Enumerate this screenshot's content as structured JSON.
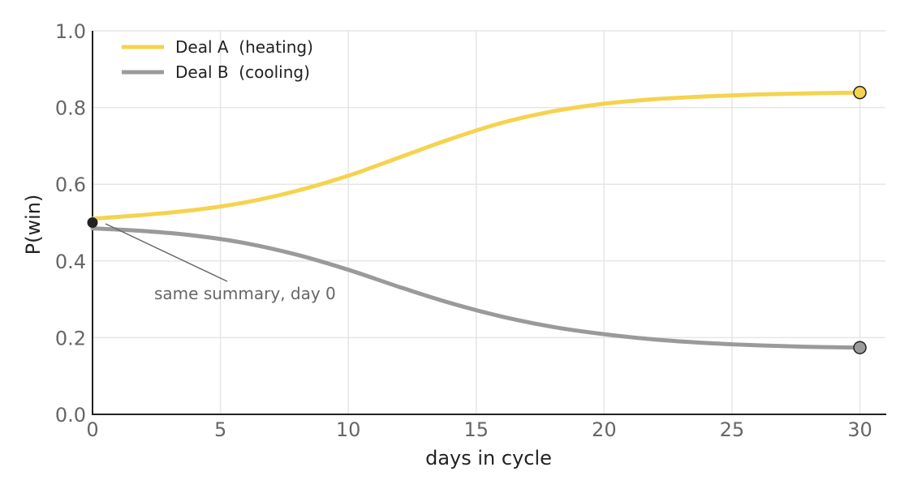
{
  "chart_data": {
    "type": "line",
    "title": "",
    "xlabel": "days in cycle",
    "ylabel": "P(win)",
    "xlim": [
      0,
      31
    ],
    "ylim": [
      0,
      1
    ],
    "xticks": [
      0,
      5,
      10,
      15,
      20,
      25,
      30
    ],
    "xtick_labels": [
      "0",
      "5",
      "10",
      "15",
      "20",
      "25",
      "30"
    ],
    "yticks": [
      0,
      0.2,
      0.4,
      0.6,
      0.8,
      1.0
    ],
    "ytick_labels": [
      "0.0",
      "0.2",
      "0.4",
      "0.6",
      "0.8",
      "1.0"
    ],
    "grid": true,
    "legend_position": "top-left",
    "series": [
      {
        "name": "Deal A  (heating)",
        "color": "#f5d34f",
        "x": [
          0,
          2,
          4,
          6,
          8,
          10,
          12,
          14,
          16,
          18,
          20,
          22,
          24,
          26,
          28,
          30
        ],
        "y": [
          0.51,
          0.52,
          0.533,
          0.553,
          0.583,
          0.622,
          0.67,
          0.718,
          0.76,
          0.79,
          0.81,
          0.822,
          0.829,
          0.834,
          0.837,
          0.839
        ]
      },
      {
        "name": "Deal B  (cooling)",
        "color": "#9a9a9a",
        "x": [
          0,
          2,
          4,
          6,
          8,
          10,
          12,
          14,
          16,
          18,
          20,
          22,
          24,
          26,
          28,
          30
        ],
        "y": [
          0.485,
          0.478,
          0.466,
          0.446,
          0.416,
          0.377,
          0.332,
          0.29,
          0.255,
          0.228,
          0.209,
          0.195,
          0.186,
          0.18,
          0.176,
          0.174
        ]
      }
    ],
    "start_marker": {
      "x": 0,
      "y": 0.5,
      "color": "#222222"
    },
    "annotation": {
      "text": "same summary, day 0",
      "x": 0,
      "y": 0.5
    }
  }
}
